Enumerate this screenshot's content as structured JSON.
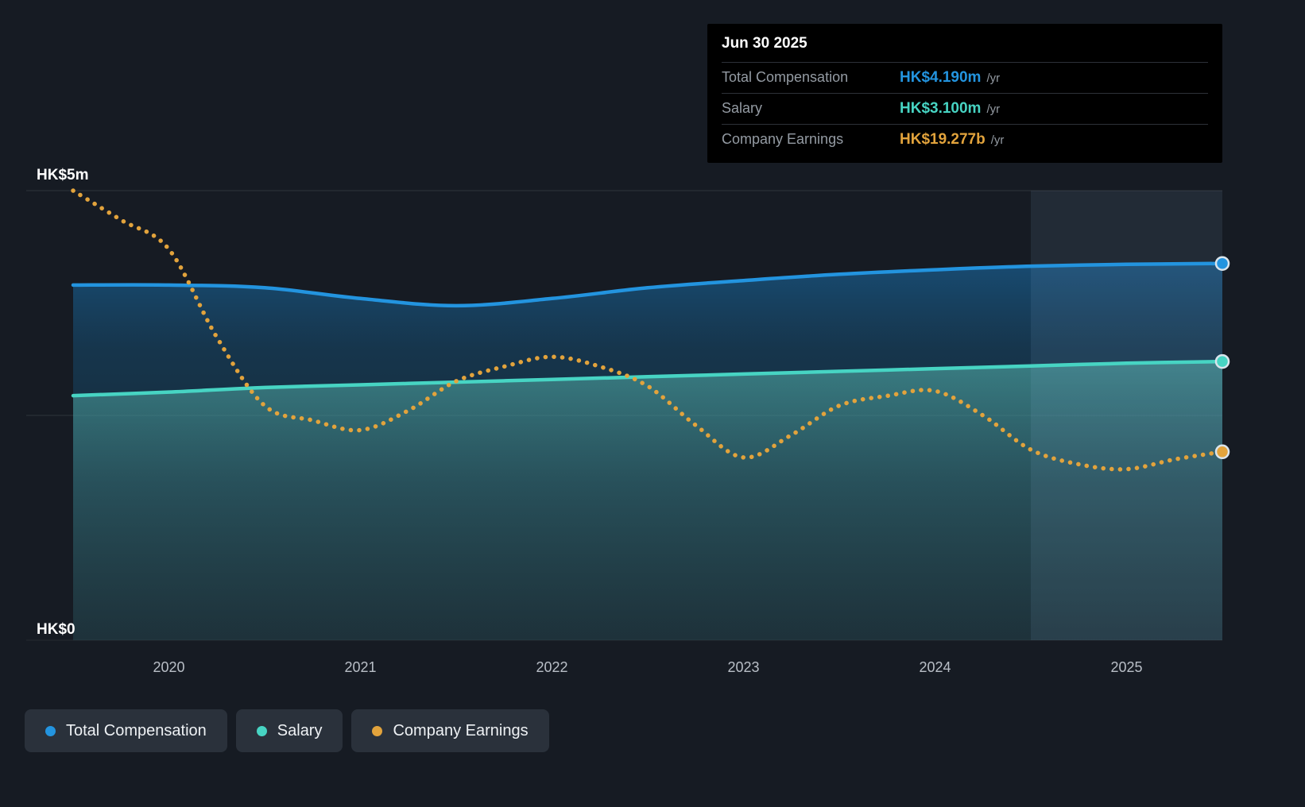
{
  "tooltip": {
    "date": "Jun 30 2025",
    "rows": [
      {
        "label": "Total Compensation",
        "value": "HK$4.190m",
        "suffix": "/yr",
        "color": "#2394df"
      },
      {
        "label": "Salary",
        "value": "HK$3.100m",
        "suffix": "/yr",
        "color": "#47d4c3"
      },
      {
        "label": "Company Earnings",
        "value": "HK$19.277b",
        "suffix": "/yr",
        "color": "#e2a33c"
      }
    ]
  },
  "legend": {
    "items": [
      {
        "label": "Total Compensation",
        "color": "#2394df"
      },
      {
        "label": "Salary",
        "color": "#47d4c3"
      },
      {
        "label": "Company Earnings",
        "color": "#e2a33c"
      }
    ]
  },
  "chart_data": {
    "type": "line",
    "title": "CEO compensation vs company earnings over time",
    "x_domain": [
      2019.5,
      2025.5
    ],
    "x_ticks": [
      2020,
      2021,
      2022,
      2023,
      2024,
      2025
    ],
    "y_left": {
      "label_top": "HK$5m",
      "label_bottom": "HK$0",
      "unit": "HK$m",
      "range": [
        0,
        5
      ]
    },
    "y_right_hidden": {
      "unit": "HK$b",
      "range": [
        0,
        46
      ]
    },
    "grid": "horizontal",
    "legend_position": "bottom-left",
    "highlight_region": {
      "from": 2024.5,
      "to": 2025.5
    },
    "series": [
      {
        "name": "Total Compensation",
        "color": "#2394df",
        "style": "solid",
        "axis": "left",
        "unit": "HK$m/yr",
        "x": [
          2019.5,
          2020,
          2020.5,
          2021,
          2021.5,
          2022,
          2022.5,
          2023,
          2023.5,
          2024,
          2024.5,
          2025,
          2025.5
        ],
        "values": [
          3.95,
          3.95,
          3.92,
          3.8,
          3.72,
          3.8,
          3.92,
          4.0,
          4.07,
          4.12,
          4.16,
          4.18,
          4.19
        ]
      },
      {
        "name": "Salary",
        "color": "#47d4c3",
        "style": "solid",
        "axis": "left",
        "unit": "HK$m/yr",
        "x": [
          2019.5,
          2020,
          2020.5,
          2021,
          2021.5,
          2022,
          2022.5,
          2023,
          2023.5,
          2024,
          2024.5,
          2025,
          2025.5
        ],
        "values": [
          2.72,
          2.76,
          2.81,
          2.84,
          2.87,
          2.9,
          2.93,
          2.96,
          2.99,
          3.02,
          3.05,
          3.08,
          3.1
        ]
      },
      {
        "name": "Company Earnings",
        "color": "#e2a33c",
        "style": "dotted",
        "axis": "right",
        "unit": "HK$b/yr",
        "x": [
          2019.5,
          2019.75,
          2020,
          2020.25,
          2020.5,
          2020.75,
          2021,
          2021.25,
          2021.5,
          2021.75,
          2022,
          2022.25,
          2022.5,
          2022.75,
          2023,
          2023.25,
          2023.5,
          2023.75,
          2024,
          2024.25,
          2024.5,
          2024.75,
          2025,
          2025.25,
          2025.5
        ],
        "values": [
          46,
          43,
          40,
          31,
          24,
          22.5,
          21.5,
          23.5,
          26.5,
          28,
          29,
          28,
          26,
          22,
          18.7,
          21,
          24,
          25,
          25.5,
          23,
          19.5,
          18,
          17.5,
          18.5,
          19.277
        ]
      }
    ]
  }
}
